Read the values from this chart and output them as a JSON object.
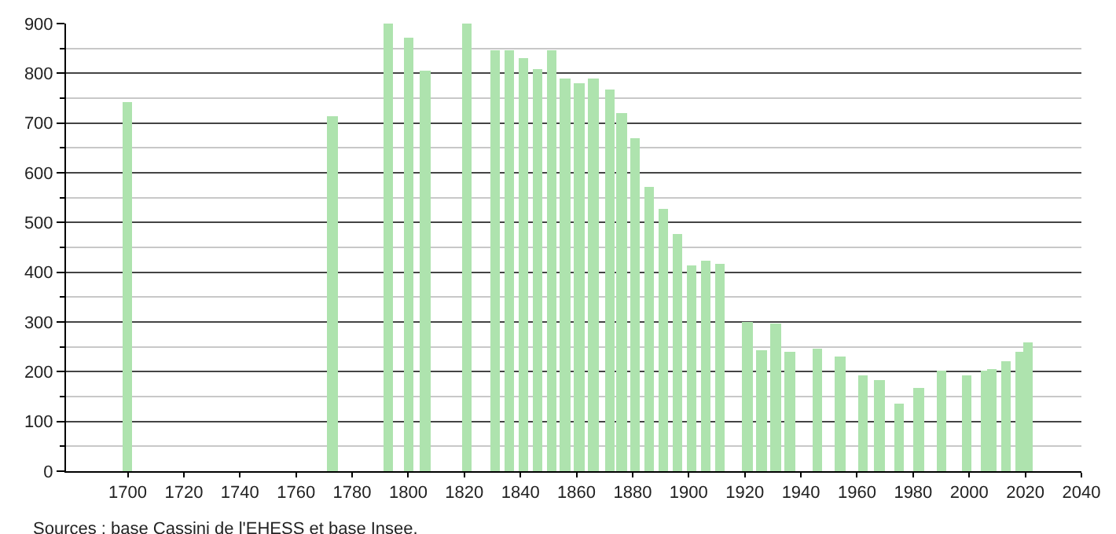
{
  "chart_data": {
    "type": "bar",
    "x": [
      1700,
      1773,
      1793,
      1800,
      1806,
      1821,
      1831,
      1836,
      1841,
      1846,
      1851,
      1856,
      1861,
      1866,
      1872,
      1876,
      1881,
      1886,
      1891,
      1896,
      1901,
      1906,
      1911,
      1921,
      1926,
      1931,
      1936,
      1946,
      1954,
      1962,
      1968,
      1975,
      1982,
      1990,
      1999,
      2006,
      2008,
      2013,
      2018,
      2021
    ],
    "values": [
      742,
      714,
      900,
      871,
      804,
      900,
      845,
      845,
      832,
      810,
      845,
      791,
      779,
      791,
      767,
      720,
      670,
      571,
      528,
      478,
      413,
      422,
      416,
      301,
      243,
      298,
      239,
      247,
      232,
      192,
      184,
      137,
      168,
      202,
      192,
      202,
      205,
      220,
      239,
      258
    ],
    "color": "#aee3ae",
    "xlim": [
      1678,
      2040
    ],
    "xticks": [
      1700,
      1720,
      1740,
      1760,
      1780,
      1800,
      1820,
      1840,
      1860,
      1880,
      1900,
      1920,
      1940,
      1960,
      1980,
      2000,
      2020,
      2040
    ],
    "ylim": [
      0,
      900
    ],
    "yticks": [
      0,
      100,
      200,
      300,
      400,
      500,
      600,
      700,
      800,
      900
    ],
    "grid": "y",
    "annotations": [
      "Sources : base Cassini de l'EHESS et base Insee."
    ]
  }
}
